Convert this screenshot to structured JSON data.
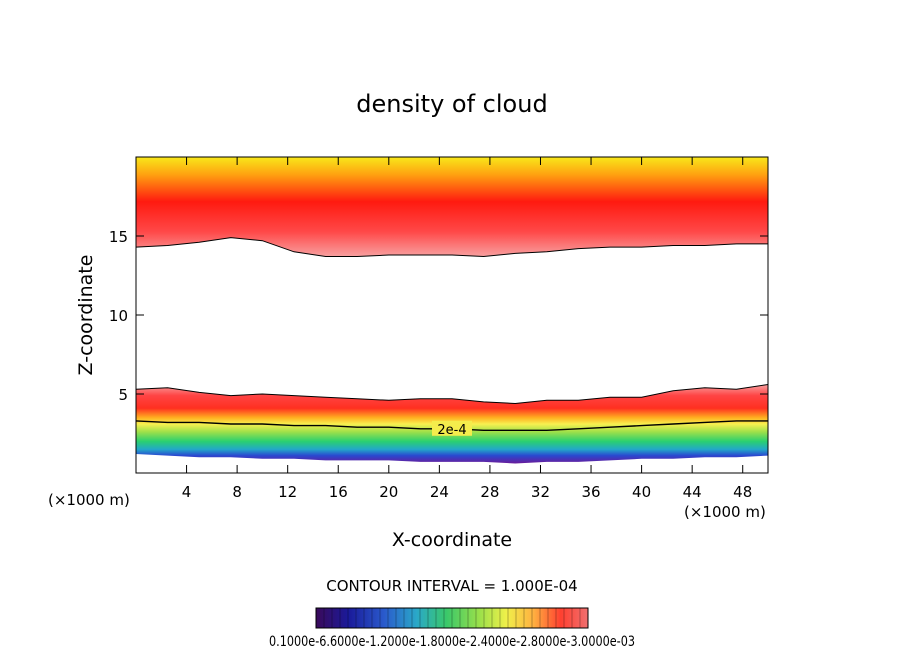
{
  "chart_data": {
    "type": "heatmap",
    "title": "density of cloud",
    "xlabel": "X-coordinate",
    "ylabel": "Z-coordinate",
    "x_unit": "(×1000 m)",
    "y_unit": "(×1000 m)",
    "xlim": [
      0,
      50
    ],
    "ylim": [
      0,
      20
    ],
    "xticks": [
      4,
      8,
      12,
      16,
      20,
      24,
      28,
      32,
      36,
      40,
      44,
      48
    ],
    "yticks": [
      5,
      10,
      15
    ],
    "contour_interval_text": "CONTOUR INTERVAL = 1.000E-04",
    "contour_label": "2e-4",
    "colorbar_text": "0.1000e-6.6000e-1.2000e-1.8000e-2.4000e-2.8000e-3.0000e-03",
    "colorbar_colors": [
      "#3a0a5a",
      "#1a1a9a",
      "#2a5acc",
      "#2aa8c8",
      "#3ac86a",
      "#9ae04a",
      "#f0f04a",
      "#ffb040",
      "#ff4030",
      "#f07070"
    ],
    "upper_layer": {
      "bottom_z": [
        14.3,
        14.4,
        14.6,
        14.9,
        14.7,
        14.0,
        13.7,
        13.7,
        13.8,
        13.8,
        13.8,
        13.7,
        13.9,
        14.0,
        14.2,
        14.3,
        14.3,
        14.4,
        14.4,
        14.5,
        14.5
      ],
      "top_z": 20
    },
    "lower_layer": {
      "top_z": [
        5.3,
        5.4,
        5.1,
        4.9,
        5.0,
        4.9,
        4.8,
        4.7,
        4.6,
        4.7,
        4.7,
        4.5,
        4.4,
        4.6,
        4.6,
        4.8,
        4.8,
        5.2,
        5.4,
        5.3,
        5.6
      ],
      "bottom_z": [
        1.2,
        1.1,
        1.0,
        1.0,
        0.9,
        0.9,
        0.8,
        0.8,
        0.8,
        0.7,
        0.7,
        0.7,
        0.6,
        0.7,
        0.7,
        0.8,
        0.9,
        0.9,
        1.0,
        1.0,
        1.1
      ],
      "contour_2e4_z": [
        3.3,
        3.2,
        3.2,
        3.1,
        3.1,
        3.0,
        3.0,
        2.9,
        2.9,
        2.8,
        2.8,
        2.7,
        2.7,
        2.7,
        2.8,
        2.9,
        3.0,
        3.1,
        3.2,
        3.3,
        3.3
      ]
    }
  }
}
